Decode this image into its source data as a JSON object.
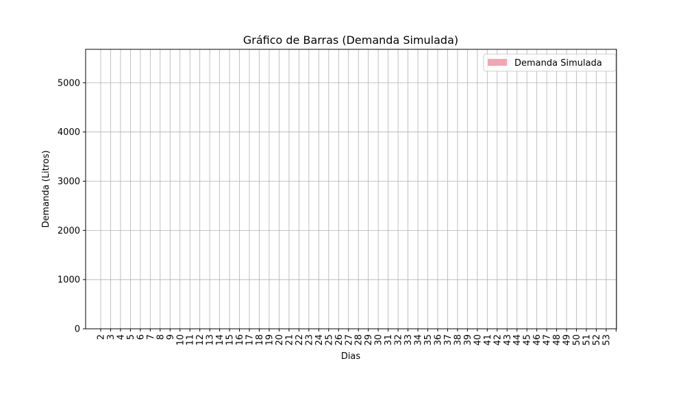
{
  "chart_data": {
    "type": "bar",
    "title": "Gráfico de Barras (Demanda Simulada)",
    "x_label": "Dias",
    "y_label": "Demanda (Litros)",
    "categories": [
      "2",
      "3",
      "4",
      "5",
      "6",
      "7",
      "8",
      "9",
      "10",
      "11",
      "12",
      "13",
      "14",
      "15",
      "16",
      "17",
      "18",
      "19",
      "20",
      "21",
      "22",
      "23",
      "24",
      "25",
      "26",
      "27",
      "28",
      "29",
      "30",
      "31",
      "32",
      "33",
      "34",
      "35",
      "36",
      "37",
      "38",
      "39",
      "40",
      "41",
      "42",
      "43",
      "44",
      "45",
      "46",
      "47",
      "48",
      "49",
      "50",
      "51",
      "52",
      "53",
      null
    ],
    "series": [
      {
        "name": "Demanda Simulada",
        "color": "#eea7b3"
      }
    ],
    "ylim": [
      0,
      5680
    ],
    "yticks": [
      0,
      1000,
      2000,
      3000,
      4000,
      5000
    ],
    "grid": true,
    "legend": "upper right"
  }
}
